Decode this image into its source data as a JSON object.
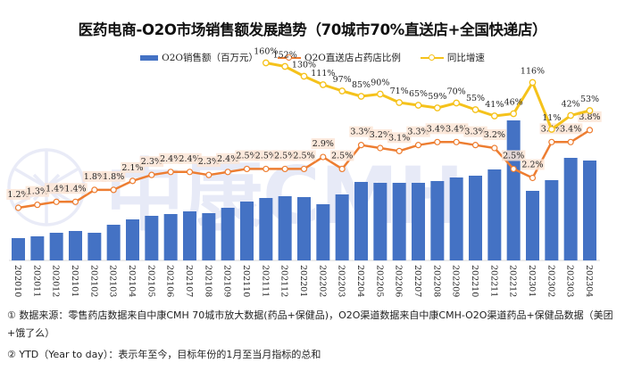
{
  "chart_data": {
    "type": "bar",
    "title": "医药电商-O2O市场销售额发展趋势（70城市70%直送店+全国快递店）",
    "xlabel": "",
    "ylabel": "",
    "legend_position": "top",
    "grid": false,
    "categories": [
      "202010",
      "202011",
      "202012",
      "202101",
      "202102",
      "202103",
      "202104",
      "202105",
      "202106",
      "202107",
      "202108",
      "202109",
      "202110",
      "202111",
      "202112",
      "202201",
      "202202",
      "202203",
      "202204",
      "202205",
      "202206",
      "202207",
      "202208",
      "202209",
      "202210",
      "202211",
      "202212",
      "202301",
      "202302",
      "202303",
      "202304"
    ],
    "series": [
      {
        "name": "O2O销售额（百万元）",
        "type": "bar",
        "axis": "primary",
        "color": "#4472c4",
        "values_relative_unlabeled": [
          25,
          27,
          31,
          33,
          31,
          40,
          46,
          50,
          52,
          55,
          53,
          59,
          66,
          70,
          72,
          71,
          63,
          74,
          88,
          87,
          87,
          87,
          89,
          93,
          95,
          102,
          157,
          78,
          90,
          115,
          112
        ]
      },
      {
        "name": "O2O直送店占药店比例",
        "type": "line",
        "axis": "secondary",
        "color": "#ed7d31",
        "values": [
          1.2,
          1.3,
          1.4,
          1.4,
          1.8,
          1.8,
          2.1,
          2.3,
          2.4,
          2.4,
          2.3,
          2.4,
          2.5,
          2.5,
          2.5,
          2.5,
          2.9,
          2.5,
          3.3,
          3.2,
          3.1,
          3.3,
          3.4,
          3.4,
          3.3,
          3.2,
          2.5,
          2.2,
          3.4,
          3.4,
          3.8
        ],
        "labels": [
          "1.2%",
          "1.3%",
          "1.4%",
          "1.4%",
          "1.8%",
          "1.8%",
          "2.1%",
          "2.3%",
          "2.4%",
          "2.4%",
          "2.3%",
          "2.4%",
          "2.5%",
          "2.5%",
          "2.5%",
          "2.5%",
          "2.9%",
          "2.5%",
          "3.3%",
          "3.2%",
          "3.1%",
          "3.3%",
          "3.4%",
          "3.4%",
          "3.3%",
          "3.2%",
          "2.5%",
          "2.2%",
          "3.4%",
          "3.4%",
          "3.8%"
        ]
      },
      {
        "name": "同比增速",
        "type": "line",
        "axis": "tertiary",
        "color": "#f5c21b",
        "start_index": 13,
        "values": [
          160,
          152,
          130,
          111,
          97,
          85,
          90,
          71,
          65,
          59,
          70,
          55,
          41,
          46,
          116,
          11,
          42,
          53
        ],
        "labels": [
          "160%",
          "152%",
          "130%",
          "111%",
          "97%",
          "85%",
          "90%",
          "71%",
          "65%",
          "59%",
          "70%",
          "55%",
          "41%",
          "46%",
          "116%",
          "11%",
          "42%",
          "53%"
        ]
      }
    ]
  },
  "legend": {
    "sales": "O2O销售额（百万元）",
    "ratio": "O2O直送店占药店比例",
    "yoy": "同比增速"
  },
  "watermark": "中康CMH",
  "notes": {
    "note1": "① 数据来源：零售药店数据来自中康CMH 70城市放大数据(药品+保健品)，O2O渠道数据来自中康CMH-O2O渠道药品+保健品数据（美团+饿了么）",
    "note2": "② YTD（Year to day）：表示年至今，目标年份的1月至当月指标的总和"
  }
}
